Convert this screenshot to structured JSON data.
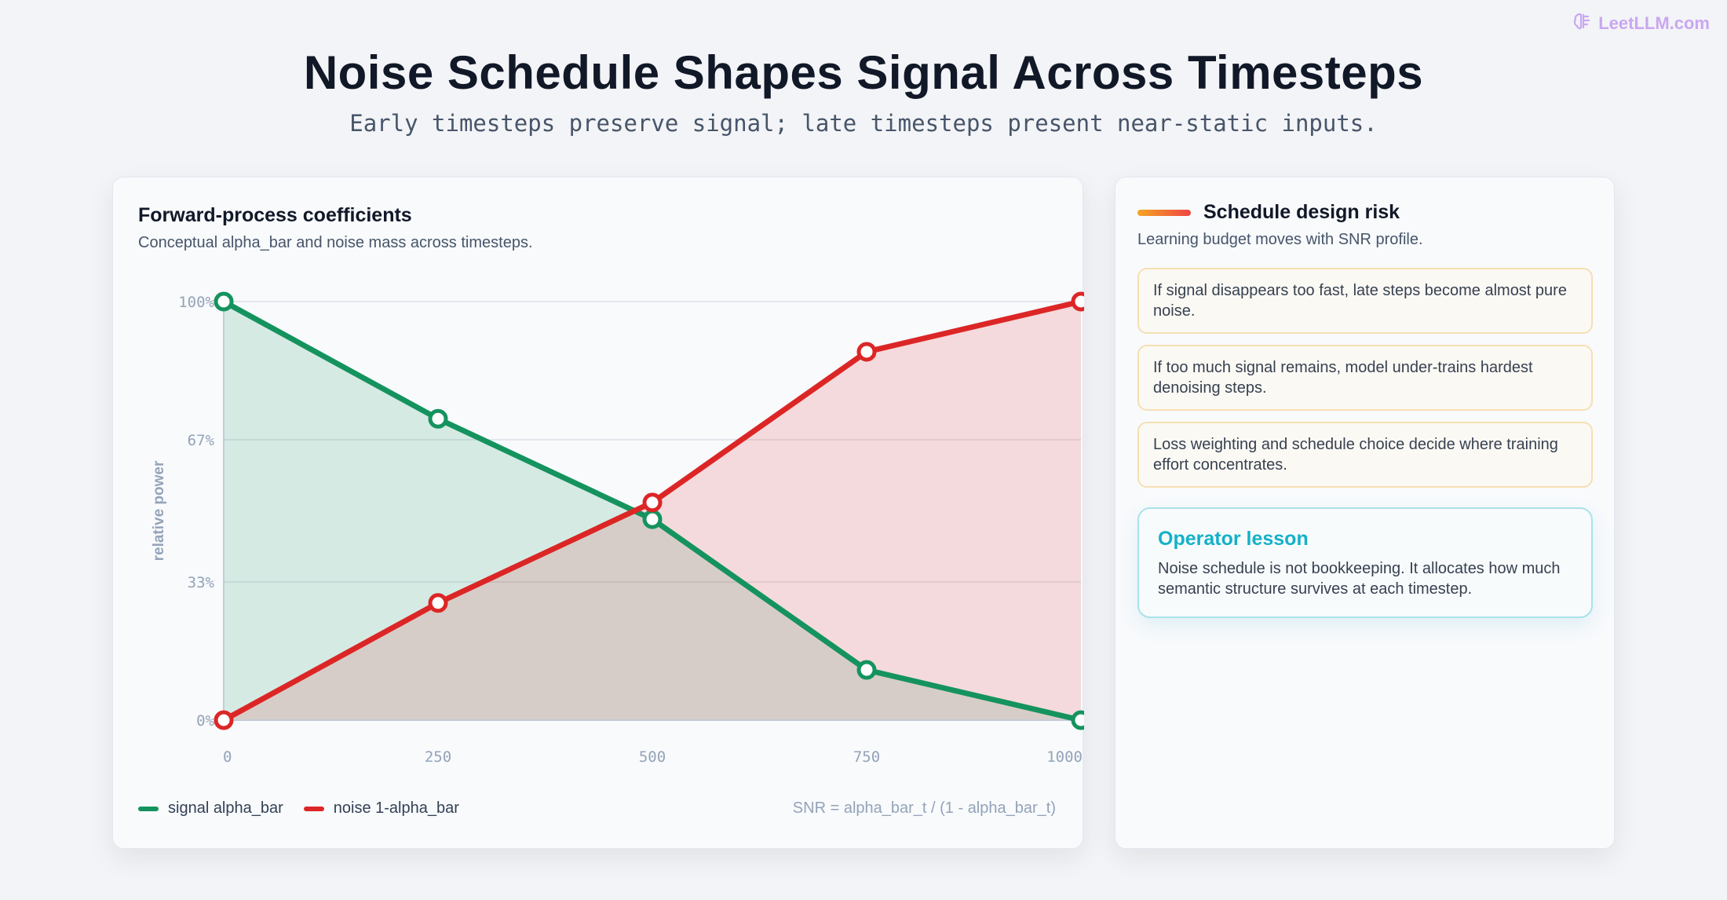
{
  "brand": {
    "name": "LeetLLM.com",
    "icon": "brain-icon",
    "color": "#c9a7f0"
  },
  "header": {
    "title": "Noise Schedule Shapes Signal Across Timesteps",
    "subtitle": "Early timesteps preserve signal; late timesteps present near-static inputs."
  },
  "chart_card": {
    "title": "Forward-process coefficients",
    "subtitle": "Conceptual alpha_bar and noise mass across timesteps.",
    "legend": [
      {
        "label": "signal alpha_bar",
        "color": "#15935e"
      },
      {
        "label": "noise 1-alpha_bar",
        "color": "#dc2626"
      }
    ],
    "formula": "SNR = alpha_bar_t / (1 - alpha_bar_t)"
  },
  "chart_data": {
    "type": "area",
    "x": [
      0,
      250,
      500,
      750,
      1000
    ],
    "x_tick_labels": [
      "0",
      "250",
      "500",
      "750",
      "1000"
    ],
    "y_tick_values": [
      0,
      33,
      67,
      100
    ],
    "y_tick_labels": [
      "0%",
      "33%",
      "67%",
      "100%"
    ],
    "xlabel": "",
    "ylabel": "relative power",
    "xlim": [
      0,
      1000
    ],
    "ylim": [
      0,
      100
    ],
    "grid": true,
    "legend_position": "bottom-left",
    "series": [
      {
        "name": "signal alpha_bar",
        "color": "#15935e",
        "fill": "#dcefe7",
        "values": [
          100,
          72,
          48,
          12,
          0
        ]
      },
      {
        "name": "noise 1-alpha_bar",
        "color": "#dc2626",
        "fill": "#f3e1e1",
        "values": [
          0,
          28,
          52,
          88,
          100
        ]
      }
    ]
  },
  "side_card": {
    "title": "Schedule design risk",
    "subtitle": "Learning budget moves with SNR profile.",
    "risks": [
      "If signal disappears too fast, late steps become almost pure noise.",
      "If too much signal remains, model under-trains hardest denoising steps.",
      "Loss weighting and schedule choice decide where training effort concentrates."
    ],
    "lesson": {
      "title": "Operator lesson",
      "body": "Noise schedule is not bookkeeping. It allocates how much semantic structure survives at each timestep."
    }
  }
}
